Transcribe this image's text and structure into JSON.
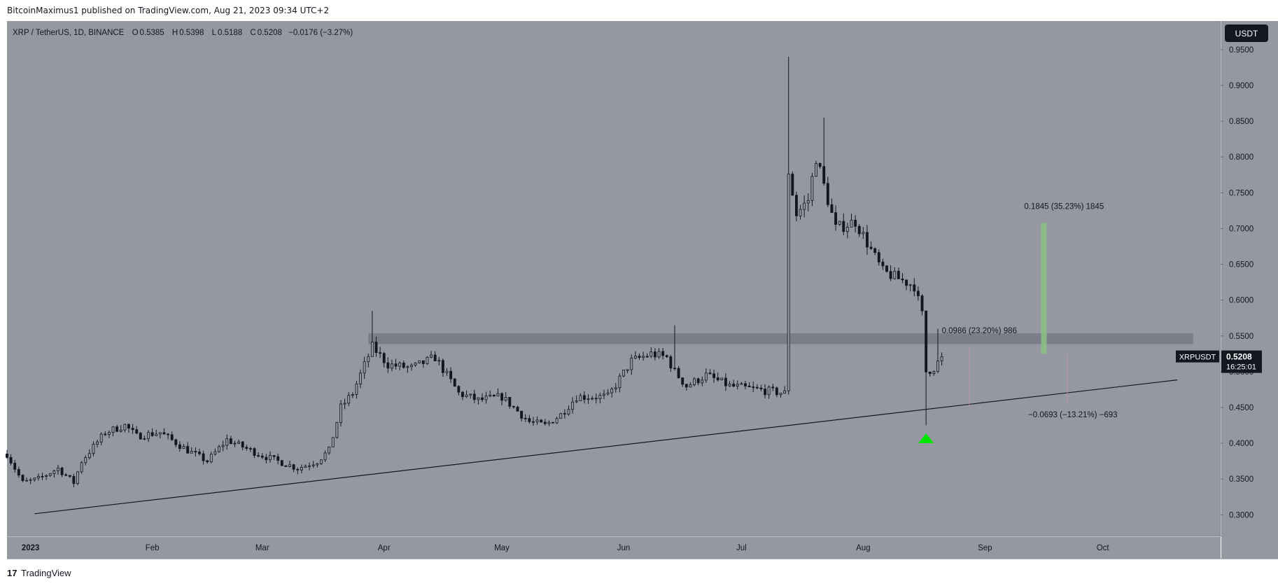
{
  "header": {
    "published": "BitcoinMaximus1 published on TradingView.com, Aug 21, 2023 09:34 UTC+2"
  },
  "footer": {
    "brand": "TradingView",
    "logo_text": "17"
  },
  "chart_data": {
    "type": "candlestick",
    "symbol_line": {
      "symbol": "XRP / TetherUS, 1D, BINANCE",
      "o_label": "O",
      "o_value": "0.5385",
      "h_label": "H",
      "h_value": "0.5398",
      "l_label": "L",
      "l_value": "0.5188",
      "c_label": "C",
      "c_value": "0.5208",
      "change": "−0.0176 (−3.27%)"
    },
    "currency_badge": "USDT",
    "price_label": {
      "ticker": "XRPUSDT",
      "price": "0.5208",
      "countdown": "16:25:01"
    },
    "ylim": [
      0.27,
      0.99
    ],
    "y_ticks": [
      0.3,
      0.35,
      0.4,
      0.45,
      0.5,
      0.55,
      0.6,
      0.65,
      0.7,
      0.75,
      0.8,
      0.85,
      0.9,
      0.95
    ],
    "y_tick_labels": [
      "0.3000",
      "0.3500",
      "0.4000",
      "0.4500",
      "0.5000",
      "0.5500",
      "0.6000",
      "0.6500",
      "0.7000",
      "0.7500",
      "0.8000",
      "0.8500",
      "0.9000",
      "0.9500"
    ],
    "x_start": "2022-12-26",
    "x_end": "2023-10-31",
    "x_ticks": [
      {
        "date": "2023-01-01",
        "label": "2023",
        "bold": true
      },
      {
        "date": "2023-02-01",
        "label": "Feb"
      },
      {
        "date": "2023-03-01",
        "label": "Mar"
      },
      {
        "date": "2023-04-01",
        "label": "Apr"
      },
      {
        "date": "2023-05-01",
        "label": "May"
      },
      {
        "date": "2023-06-01",
        "label": "Jun"
      },
      {
        "date": "2023-07-01",
        "label": "Jul"
      },
      {
        "date": "2023-08-01",
        "label": "Aug"
      },
      {
        "date": "2023-09-01",
        "label": "Sep"
      },
      {
        "date": "2023-10-01",
        "label": "Oct"
      }
    ],
    "price_path": [
      [
        "2022-12-26",
        0.385
      ],
      [
        "2022-12-30",
        0.345
      ],
      [
        "2023-01-03",
        0.35
      ],
      [
        "2023-01-08",
        0.365
      ],
      [
        "2023-01-12",
        0.345
      ],
      [
        "2023-01-14",
        0.375
      ],
      [
        "2023-01-20",
        0.415
      ],
      [
        "2023-01-25",
        0.425
      ],
      [
        "2023-01-28",
        0.41
      ],
      [
        "2023-02-03",
        0.415
      ],
      [
        "2023-02-10",
        0.39
      ],
      [
        "2023-02-15",
        0.375
      ],
      [
        "2023-02-20",
        0.405
      ],
      [
        "2023-02-28",
        0.385
      ],
      [
        "2023-03-05",
        0.375
      ],
      [
        "2023-03-10",
        0.365
      ],
      [
        "2023-03-15",
        0.375
      ],
      [
        "2023-03-18",
        0.39
      ],
      [
        "2023-03-21",
        0.45
      ],
      [
        "2023-03-24",
        0.47
      ],
      [
        "2023-03-29",
        0.535
      ],
      [
        "2023-04-02",
        0.51
      ],
      [
        "2023-04-08",
        0.505
      ],
      [
        "2023-04-14",
        0.52
      ],
      [
        "2023-04-20",
        0.47
      ],
      [
        "2023-04-25",
        0.46
      ],
      [
        "2023-05-01",
        0.465
      ],
      [
        "2023-05-08",
        0.43
      ],
      [
        "2023-05-12",
        0.425
      ],
      [
        "2023-05-16",
        0.44
      ],
      [
        "2023-05-20",
        0.465
      ],
      [
        "2023-05-28",
        0.465
      ],
      [
        "2023-06-03",
        0.515
      ],
      [
        "2023-06-08",
        0.525
      ],
      [
        "2023-06-12",
        0.52
      ],
      [
        "2023-06-14",
        0.5
      ],
      [
        "2023-06-17",
        0.48
      ],
      [
        "2023-06-22",
        0.495
      ],
      [
        "2023-06-28",
        0.48
      ],
      [
        "2023-07-05",
        0.475
      ],
      [
        "2023-07-12",
        0.47
      ],
      [
        "2023-07-13",
        0.78
      ],
      [
        "2023-07-15",
        0.72
      ],
      [
        "2023-07-18",
        0.74
      ],
      [
        "2023-07-20",
        0.8
      ],
      [
        "2023-07-22",
        0.76
      ],
      [
        "2023-07-25",
        0.7
      ],
      [
        "2023-07-30",
        0.71
      ],
      [
        "2023-08-02",
        0.68
      ],
      [
        "2023-08-06",
        0.64
      ],
      [
        "2023-08-10",
        0.63
      ],
      [
        "2023-08-14",
        0.62
      ],
      [
        "2023-08-16",
        0.58
      ],
      [
        "2023-08-17",
        0.5
      ],
      [
        "2023-08-19",
        0.505
      ],
      [
        "2023-08-21",
        0.521
      ]
    ],
    "special_wicks": [
      {
        "date": "2023-03-29",
        "high": 0.585
      },
      {
        "date": "2023-06-14",
        "high": 0.565
      },
      {
        "date": "2023-07-13",
        "high": 0.94
      },
      {
        "date": "2023-07-22",
        "high": 0.855
      },
      {
        "date": "2023-08-17",
        "low": 0.425
      },
      {
        "date": "2023-08-20",
        "high": 0.56
      }
    ],
    "resistance_zone": {
      "from": "2023-03-28",
      "to": "2023-10-24",
      "low": 0.5385,
      "high": 0.5535
    },
    "trendline": {
      "start": {
        "date": "2023-01-02",
        "price": 0.3015
      },
      "end": {
        "date": "2023-10-20",
        "price": 0.4885
      }
    },
    "measures": [
      {
        "label": "0.0986 (23.20%) 986",
        "date": "2023-08-21",
        "price": 0.5535
      },
      {
        "label": "0.1845 (35.23%) 1845",
        "date": "2023-09-11",
        "price": 0.7275
      },
      {
        "label": "−0.0693 (−13.21%) −693",
        "date": "2023-09-12",
        "price": 0.4365
      }
    ],
    "green_bar": {
      "date": "2023-09-16",
      "from": 0.525,
      "to": 0.708
    },
    "thin_lines": [
      {
        "date": "2023-08-28",
        "from": 0.452,
        "to": 0.535
      },
      {
        "date": "2023-09-22",
        "from": 0.455,
        "to": 0.525
      }
    ],
    "up_arrow": {
      "date": "2023-08-17",
      "price": 0.404
    },
    "colors": {
      "background": "#9598a1",
      "candle": "#131722",
      "zone": "#787b86",
      "green_bar": "#8bc085",
      "arrow": "#00e600",
      "label_bg": "#131722",
      "thin_line": "#c99a9a"
    }
  }
}
